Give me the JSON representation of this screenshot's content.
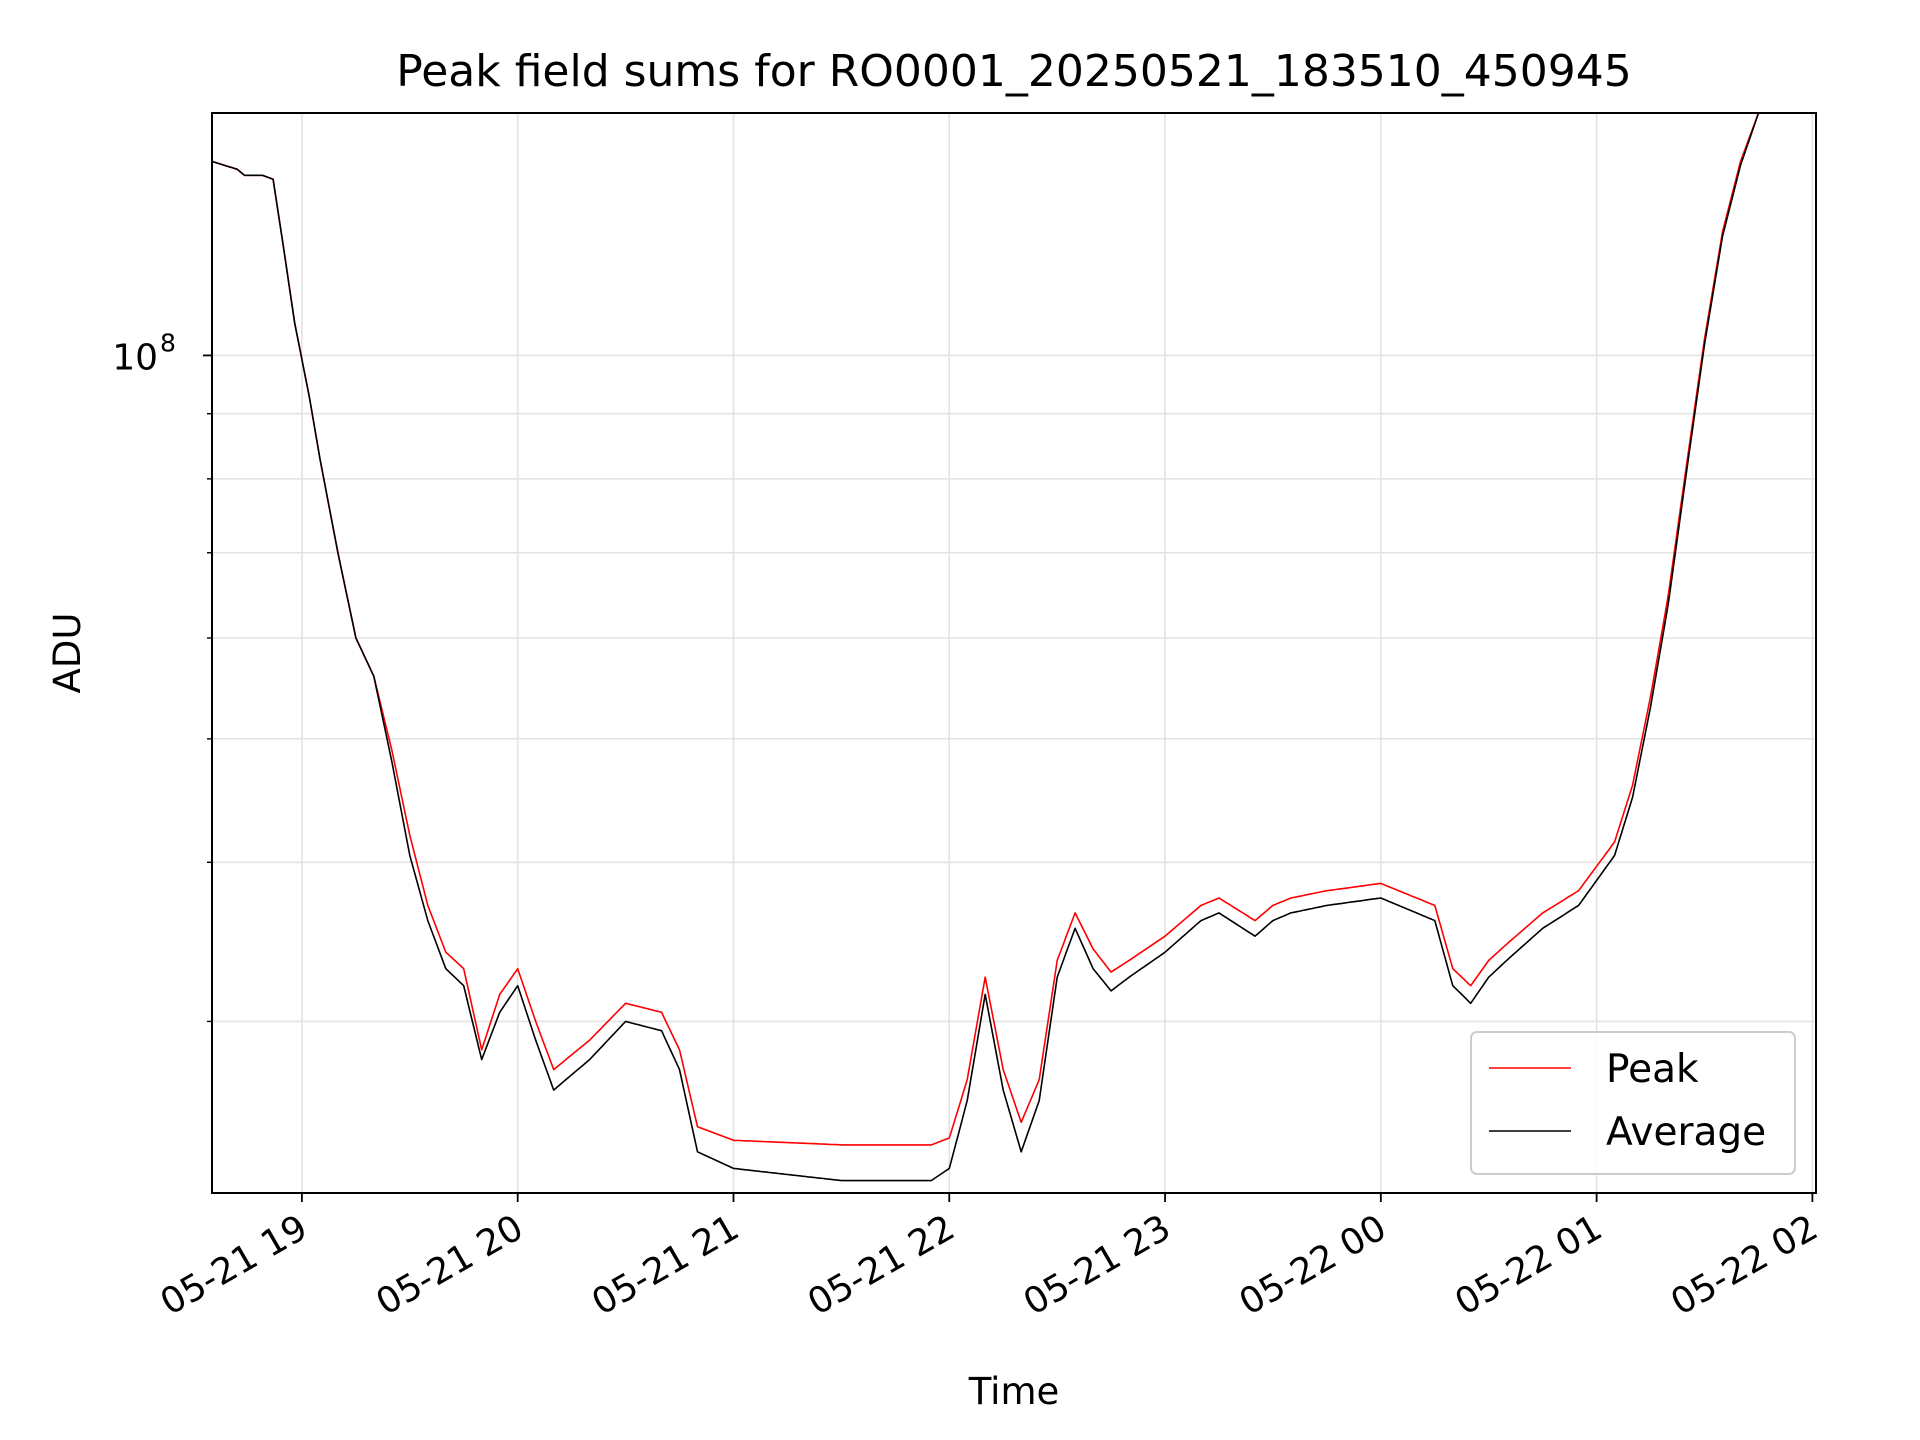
{
  "chart_data": {
    "type": "line",
    "title": "Peak field sums for RO0001_20250521_183510_450945",
    "xlabel": "Time",
    "ylabel": "ADU",
    "yscale": "log",
    "grid": true,
    "legend_position": "lower-right",
    "xlim": [
      "2025-05-21 18:35",
      "2025-05-22 02:01"
    ],
    "ylim": [
      22000000,
      155000000
    ],
    "x_ticks": [
      {
        "value": "2025-05-21 19:00",
        "label": "05-21 19"
      },
      {
        "value": "2025-05-21 20:00",
        "label": "05-21 20"
      },
      {
        "value": "2025-05-21 21:00",
        "label": "05-21 21"
      },
      {
        "value": "2025-05-21 22:00",
        "label": "05-21 22"
      },
      {
        "value": "2025-05-21 23:00",
        "label": "05-21 23"
      },
      {
        "value": "2025-05-22 00:00",
        "label": "05-22 00"
      },
      {
        "value": "2025-05-22 01:00",
        "label": "05-22 01"
      },
      {
        "value": "2025-05-22 02:00",
        "label": "05-22 02"
      }
    ],
    "y_major_ticks": [
      {
        "value": 100000000,
        "base": "10",
        "exp": "8"
      }
    ],
    "y_minor_ticks": [
      30000000,
      40000000,
      50000000,
      60000000,
      70000000,
      80000000,
      90000000,
      200000000
    ],
    "series": [
      {
        "name": "Peak",
        "color": "#ff0000",
        "x": [
          "2025-05-21 18:35",
          "2025-05-21 18:42",
          "2025-05-21 18:44",
          "2025-05-21 18:49",
          "2025-05-21 18:52",
          "2025-05-21 18:55",
          "2025-05-21 18:58",
          "2025-05-21 19:02",
          "2025-05-21 19:05",
          "2025-05-21 19:10",
          "2025-05-21 19:15",
          "2025-05-21 19:20",
          "2025-05-21 19:25",
          "2025-05-21 19:30",
          "2025-05-21 19:35",
          "2025-05-21 19:40",
          "2025-05-21 19:45",
          "2025-05-21 19:50",
          "2025-05-21 19:55",
          "2025-05-21 20:00",
          "2025-05-21 20:05",
          "2025-05-21 20:10",
          "2025-05-21 20:20",
          "2025-05-21 20:30",
          "2025-05-21 20:40",
          "2025-05-21 20:45",
          "2025-05-21 20:50",
          "2025-05-21 21:00",
          "2025-05-21 21:30",
          "2025-05-21 21:55",
          "2025-05-21 22:00",
          "2025-05-21 22:05",
          "2025-05-21 22:10",
          "2025-05-21 22:15",
          "2025-05-21 22:20",
          "2025-05-21 22:25",
          "2025-05-21 22:30",
          "2025-05-21 22:35",
          "2025-05-21 22:40",
          "2025-05-21 22:45",
          "2025-05-21 22:50",
          "2025-05-21 23:00",
          "2025-05-21 23:10",
          "2025-05-21 23:15",
          "2025-05-21 23:25",
          "2025-05-21 23:30",
          "2025-05-21 23:35",
          "2025-05-21 23:45",
          "2025-05-22 00:00",
          "2025-05-22 00:15",
          "2025-05-22 00:20",
          "2025-05-22 00:25",
          "2025-05-22 00:30",
          "2025-05-22 00:35",
          "2025-05-22 00:45",
          "2025-05-22 00:55",
          "2025-05-22 01:05",
          "2025-05-22 01:10",
          "2025-05-22 01:15",
          "2025-05-22 01:20",
          "2025-05-22 01:25",
          "2025-05-22 01:30",
          "2025-05-22 01:35",
          "2025-05-22 01:40",
          "2025-05-22 01:45",
          "2025-05-22 01:50",
          "2025-05-22 01:55",
          "2025-05-22 02:01"
        ],
        "values": [
          142000000,
          140000000,
          138500000,
          138500000,
          137500000,
          121000000,
          106000000,
          93000000,
          83000000,
          70000000,
          60000000,
          56000000,
          49000000,
          42000000,
          37000000,
          34000000,
          33000000,
          28500000,
          31500000,
          33000000,
          30000000,
          27500000,
          29000000,
          31000000,
          30500000,
          28500000,
          24800000,
          24200000,
          24000000,
          24000000,
          24300000,
          27000000,
          32500000,
          27500000,
          25000000,
          27000000,
          33500000,
          36500000,
          34200000,
          32800000,
          33500000,
          35000000,
          37000000,
          37500000,
          36000000,
          37000000,
          37500000,
          38000000,
          38500000,
          37000000,
          33000000,
          32000000,
          33500000,
          34500000,
          36500000,
          38000000,
          41500000,
          46000000,
          54000000,
          65000000,
          82000000,
          103000000,
          125000000,
          142000000,
          155000000,
          155000000,
          155000000,
          155000000
        ]
      },
      {
        "name": "Average",
        "color": "#000000",
        "x": [
          "2025-05-21 18:35",
          "2025-05-21 18:42",
          "2025-05-21 18:44",
          "2025-05-21 18:49",
          "2025-05-21 18:52",
          "2025-05-21 18:55",
          "2025-05-21 18:58",
          "2025-05-21 19:02",
          "2025-05-21 19:05",
          "2025-05-21 19:10",
          "2025-05-21 19:15",
          "2025-05-21 19:20",
          "2025-05-21 19:25",
          "2025-05-21 19:30",
          "2025-05-21 19:35",
          "2025-05-21 19:40",
          "2025-05-21 19:45",
          "2025-05-21 19:50",
          "2025-05-21 19:55",
          "2025-05-21 20:00",
          "2025-05-21 20:05",
          "2025-05-21 20:10",
          "2025-05-21 20:20",
          "2025-05-21 20:30",
          "2025-05-21 20:40",
          "2025-05-21 20:45",
          "2025-05-21 20:50",
          "2025-05-21 21:00",
          "2025-05-21 21:30",
          "2025-05-21 21:55",
          "2025-05-21 22:00",
          "2025-05-21 22:05",
          "2025-05-21 22:10",
          "2025-05-21 22:15",
          "2025-05-21 22:20",
          "2025-05-21 22:25",
          "2025-05-21 22:30",
          "2025-05-21 22:35",
          "2025-05-21 22:40",
          "2025-05-21 22:45",
          "2025-05-21 22:50",
          "2025-05-21 23:00",
          "2025-05-21 23:10",
          "2025-05-21 23:15",
          "2025-05-21 23:25",
          "2025-05-21 23:30",
          "2025-05-21 23:35",
          "2025-05-21 23:45",
          "2025-05-22 00:00",
          "2025-05-22 00:15",
          "2025-05-22 00:20",
          "2025-05-22 00:25",
          "2025-05-22 00:30",
          "2025-05-22 00:35",
          "2025-05-22 00:45",
          "2025-05-22 00:55",
          "2025-05-22 01:05",
          "2025-05-22 01:10",
          "2025-05-22 01:15",
          "2025-05-22 01:20",
          "2025-05-22 01:25",
          "2025-05-22 01:30",
          "2025-05-22 01:35",
          "2025-05-22 01:40",
          "2025-05-22 01:45",
          "2025-05-22 01:50",
          "2025-05-22 01:55",
          "2025-05-22 02:01"
        ],
        "values": [
          142000000,
          140000000,
          138500000,
          138500000,
          137500000,
          121000000,
          106000000,
          93000000,
          83000000,
          70000000,
          60000000,
          56000000,
          48000000,
          40500000,
          36000000,
          33000000,
          32000000,
          28000000,
          30500000,
          32000000,
          29000000,
          26500000,
          28000000,
          30000000,
          29500000,
          27500000,
          23700000,
          23000000,
          22500000,
          22500000,
          23000000,
          26000000,
          31500000,
          26500000,
          23700000,
          26000000,
          32500000,
          35500000,
          33000000,
          31700000,
          32500000,
          34000000,
          36000000,
          36500000,
          35000000,
          36000000,
          36500000,
          37000000,
          37500000,
          36000000,
          32000000,
          31000000,
          32500000,
          33500000,
          35500000,
          37000000,
          40500000,
          45000000,
          53000000,
          64000000,
          81000000,
          102000000,
          124000000,
          141000000,
          155000000,
          155000000,
          155000000,
          155000000
        ]
      }
    ]
  }
}
